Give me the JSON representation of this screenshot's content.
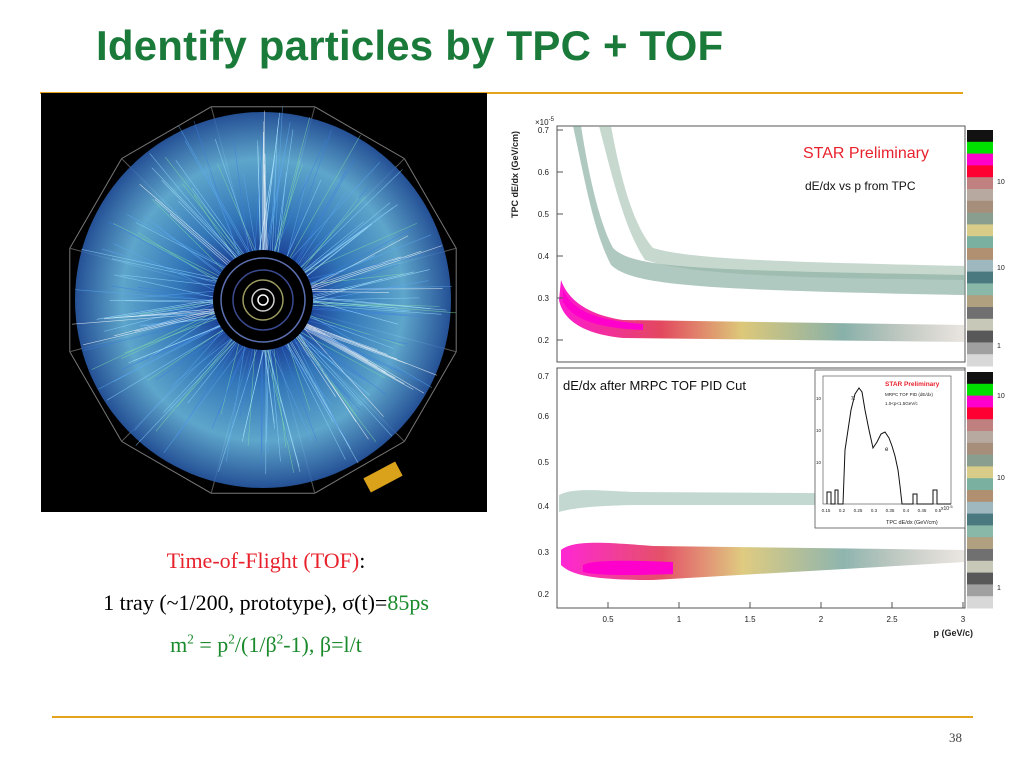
{
  "slide": {
    "title": "Identify particles by TPC + TOF",
    "page_number": "38"
  },
  "caption": {
    "line1_label": "Time-of-Flight (TOF)",
    "line1_colon": ":",
    "line2_prefix": "1 tray (~1/200, prototype), σ(t)=",
    "line2_value": "85ps",
    "line3": {
      "m": "m",
      "eq_p": " = p",
      "div": "/(1/β",
      "end": "-1), β=l/t",
      "sup": "2"
    }
  },
  "plot": {
    "ylabel": "TPC dE/dx (GeV/cm)",
    "xlabel": "p (GeV/c)",
    "exponent": "×10",
    "exponent_power": "-5",
    "upper_title": "STAR Preliminary",
    "upper_subtitle": "dE/dx vs p from TPC",
    "lower_title": "dE/dx after MRPC TOF PID Cut",
    "yticks": [
      "0.7",
      "0.6",
      "0.5",
      "0.4",
      "0.3",
      "0.2"
    ],
    "yticks_lower": [
      "0.7",
      "0.6",
      "0.5",
      "0.4",
      "0.3",
      "0.2"
    ],
    "xticks": [
      "0.5",
      "1",
      "1.5",
      "2",
      "2.5",
      "3"
    ],
    "zticks_upper": [
      "1",
      "10",
      "10"
    ],
    "zticks_lower": [
      "1",
      "10",
      "10"
    ],
    "inset": {
      "title": "STAR Preliminary",
      "subtitle": "MRPC TOF PID (dE/dx)",
      "cut": "1.0<p<1.5GeV/c",
      "xlabel": "TPC dE/dx (GeV/cm)",
      "exponent": "x10",
      "exponent_power": "-5",
      "xticks": [
        "0.15",
        "0.2",
        "0.25",
        "0.3",
        "0.35",
        "0.4",
        "0.45",
        "0.5"
      ],
      "yticks": [
        "10",
        "10",
        "10"
      ],
      "label_pi": "π",
      "label_e": "e"
    }
  },
  "colors": {
    "title_green": "#1a7a3a",
    "rule_gold": "#e5a31c",
    "caption_red": "#e8222d",
    "caption_green": "#1a8a2c",
    "star_red": "#e8222d"
  }
}
